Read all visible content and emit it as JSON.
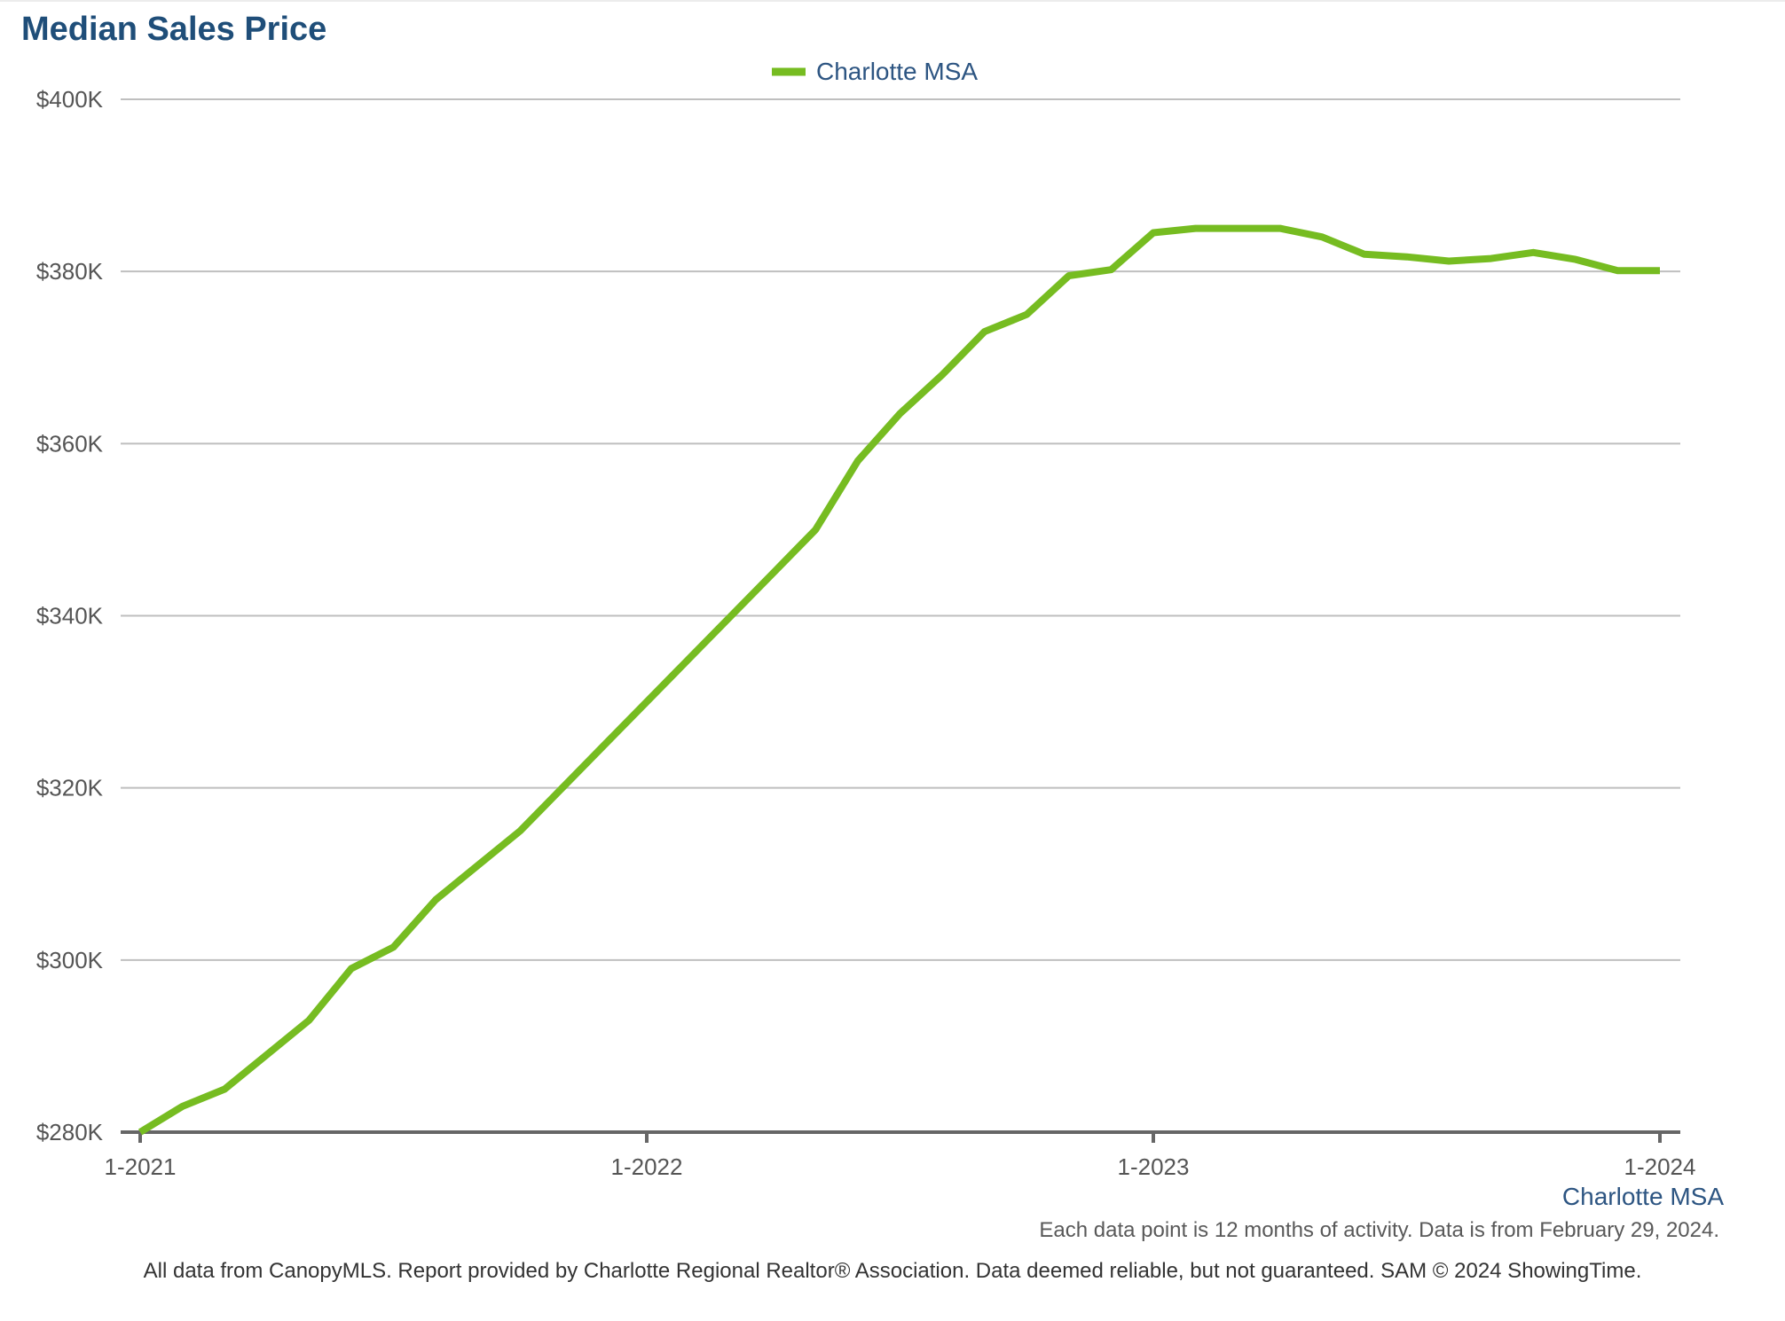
{
  "title": "Median Sales Price",
  "note": "Each data point is 12 months of activity. Data is from February 29, 2024.",
  "footer": "All data from CanopyMLS. Report provided by Charlotte Regional Realtor® Association. Data deemed reliable, but not guaranteed. SAM © 2024 ShowingTime.",
  "colors": {
    "series": "#76bc21",
    "title": "#1f4e79",
    "grid": "#bfbfbf",
    "axis": "#666666"
  },
  "chart_data": {
    "type": "line",
    "title": "Median Sales Price",
    "xlabel": "",
    "ylabel": "",
    "x": [
      "1-2021",
      "2-2021",
      "3-2021",
      "4-2021",
      "5-2021",
      "6-2021",
      "7-2021",
      "8-2021",
      "9-2021",
      "10-2021",
      "11-2021",
      "12-2021",
      "1-2022",
      "2-2022",
      "3-2022",
      "4-2022",
      "5-2022",
      "6-2022",
      "7-2022",
      "8-2022",
      "9-2022",
      "10-2022",
      "11-2022",
      "12-2022",
      "1-2023",
      "2-2023",
      "3-2023",
      "4-2023",
      "5-2023",
      "6-2023",
      "7-2023",
      "8-2023",
      "9-2023",
      "10-2023",
      "11-2023",
      "12-2023",
      "1-2024"
    ],
    "x_ticks": [
      "1-2021",
      "1-2022",
      "1-2023",
      "1-2024"
    ],
    "ylim": [
      280000,
      400000
    ],
    "y_ticks": [
      {
        "value": 280000,
        "label": "$280K"
      },
      {
        "value": 300000,
        "label": "$300K"
      },
      {
        "value": 320000,
        "label": "$320K"
      },
      {
        "value": 340000,
        "label": "$340K"
      },
      {
        "value": 360000,
        "label": "$360K"
      },
      {
        "value": 380000,
        "label": "$380K"
      },
      {
        "value": 400000,
        "label": "$400K"
      }
    ],
    "grid": true,
    "legend": "top-center",
    "series_caption": "Charlotte MSA",
    "series": [
      {
        "name": "Charlotte MSA",
        "color": "#76bc21",
        "values": [
          280000,
          283000,
          285000,
          289000,
          293000,
          299000,
          301500,
          307000,
          311000,
          315000,
          320000,
          325000,
          330000,
          335000,
          340000,
          345000,
          350000,
          358000,
          363500,
          368000,
          373000,
          375000,
          379500,
          380200,
          384500,
          385000,
          385000,
          385000,
          384000,
          382000,
          381700,
          381200,
          381500,
          382200,
          381400,
          380100,
          380100
        ]
      }
    ]
  }
}
